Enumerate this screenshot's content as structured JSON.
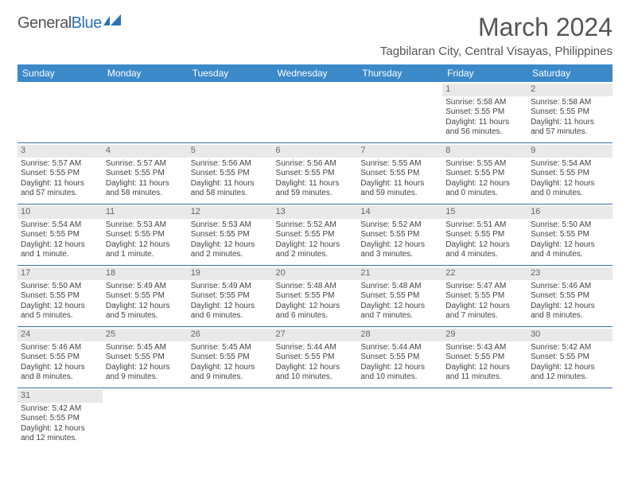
{
  "logo": {
    "text_general": "General",
    "text_blue": "Blue"
  },
  "title": "March 2024",
  "location": "Tagbilaran City, Central Visayas, Philippines",
  "day_headers": [
    "Sunday",
    "Monday",
    "Tuesday",
    "Wednesday",
    "Thursday",
    "Friday",
    "Saturday"
  ],
  "colors": {
    "header_bg": "#3b89c9",
    "header_text": "#ffffff",
    "daynum_bg": "#e9e9e9",
    "border": "#3b6ea5",
    "text": "#444444"
  },
  "weeks": [
    [
      null,
      null,
      null,
      null,
      null,
      {
        "n": "1",
        "sr": "Sunrise: 5:58 AM",
        "ss": "Sunset: 5:55 PM",
        "dl1": "Daylight: 11 hours",
        "dl2": "and 56 minutes."
      },
      {
        "n": "2",
        "sr": "Sunrise: 5:58 AM",
        "ss": "Sunset: 5:55 PM",
        "dl1": "Daylight: 11 hours",
        "dl2": "and 57 minutes."
      }
    ],
    [
      {
        "n": "3",
        "sr": "Sunrise: 5:57 AM",
        "ss": "Sunset: 5:55 PM",
        "dl1": "Daylight: 11 hours",
        "dl2": "and 57 minutes."
      },
      {
        "n": "4",
        "sr": "Sunrise: 5:57 AM",
        "ss": "Sunset: 5:55 PM",
        "dl1": "Daylight: 11 hours",
        "dl2": "and 58 minutes."
      },
      {
        "n": "5",
        "sr": "Sunrise: 5:56 AM",
        "ss": "Sunset: 5:55 PM",
        "dl1": "Daylight: 11 hours",
        "dl2": "and 58 minutes."
      },
      {
        "n": "6",
        "sr": "Sunrise: 5:56 AM",
        "ss": "Sunset: 5:55 PM",
        "dl1": "Daylight: 11 hours",
        "dl2": "and 59 minutes."
      },
      {
        "n": "7",
        "sr": "Sunrise: 5:55 AM",
        "ss": "Sunset: 5:55 PM",
        "dl1": "Daylight: 11 hours",
        "dl2": "and 59 minutes."
      },
      {
        "n": "8",
        "sr": "Sunrise: 5:55 AM",
        "ss": "Sunset: 5:55 PM",
        "dl1": "Daylight: 12 hours",
        "dl2": "and 0 minutes."
      },
      {
        "n": "9",
        "sr": "Sunrise: 5:54 AM",
        "ss": "Sunset: 5:55 PM",
        "dl1": "Daylight: 12 hours",
        "dl2": "and 0 minutes."
      }
    ],
    [
      {
        "n": "10",
        "sr": "Sunrise: 5:54 AM",
        "ss": "Sunset: 5:55 PM",
        "dl1": "Daylight: 12 hours",
        "dl2": "and 1 minute."
      },
      {
        "n": "11",
        "sr": "Sunrise: 5:53 AM",
        "ss": "Sunset: 5:55 PM",
        "dl1": "Daylight: 12 hours",
        "dl2": "and 1 minute."
      },
      {
        "n": "12",
        "sr": "Sunrise: 5:53 AM",
        "ss": "Sunset: 5:55 PM",
        "dl1": "Daylight: 12 hours",
        "dl2": "and 2 minutes."
      },
      {
        "n": "13",
        "sr": "Sunrise: 5:52 AM",
        "ss": "Sunset: 5:55 PM",
        "dl1": "Daylight: 12 hours",
        "dl2": "and 2 minutes."
      },
      {
        "n": "14",
        "sr": "Sunrise: 5:52 AM",
        "ss": "Sunset: 5:55 PM",
        "dl1": "Daylight: 12 hours",
        "dl2": "and 3 minutes."
      },
      {
        "n": "15",
        "sr": "Sunrise: 5:51 AM",
        "ss": "Sunset: 5:55 PM",
        "dl1": "Daylight: 12 hours",
        "dl2": "and 4 minutes."
      },
      {
        "n": "16",
        "sr": "Sunrise: 5:50 AM",
        "ss": "Sunset: 5:55 PM",
        "dl1": "Daylight: 12 hours",
        "dl2": "and 4 minutes."
      }
    ],
    [
      {
        "n": "17",
        "sr": "Sunrise: 5:50 AM",
        "ss": "Sunset: 5:55 PM",
        "dl1": "Daylight: 12 hours",
        "dl2": "and 5 minutes."
      },
      {
        "n": "18",
        "sr": "Sunrise: 5:49 AM",
        "ss": "Sunset: 5:55 PM",
        "dl1": "Daylight: 12 hours",
        "dl2": "and 5 minutes."
      },
      {
        "n": "19",
        "sr": "Sunrise: 5:49 AM",
        "ss": "Sunset: 5:55 PM",
        "dl1": "Daylight: 12 hours",
        "dl2": "and 6 minutes."
      },
      {
        "n": "20",
        "sr": "Sunrise: 5:48 AM",
        "ss": "Sunset: 5:55 PM",
        "dl1": "Daylight: 12 hours",
        "dl2": "and 6 minutes."
      },
      {
        "n": "21",
        "sr": "Sunrise: 5:48 AM",
        "ss": "Sunset: 5:55 PM",
        "dl1": "Daylight: 12 hours",
        "dl2": "and 7 minutes."
      },
      {
        "n": "22",
        "sr": "Sunrise: 5:47 AM",
        "ss": "Sunset: 5:55 PM",
        "dl1": "Daylight: 12 hours",
        "dl2": "and 7 minutes."
      },
      {
        "n": "23",
        "sr": "Sunrise: 5:46 AM",
        "ss": "Sunset: 5:55 PM",
        "dl1": "Daylight: 12 hours",
        "dl2": "and 8 minutes."
      }
    ],
    [
      {
        "n": "24",
        "sr": "Sunrise: 5:46 AM",
        "ss": "Sunset: 5:55 PM",
        "dl1": "Daylight: 12 hours",
        "dl2": "and 8 minutes."
      },
      {
        "n": "25",
        "sr": "Sunrise: 5:45 AM",
        "ss": "Sunset: 5:55 PM",
        "dl1": "Daylight: 12 hours",
        "dl2": "and 9 minutes."
      },
      {
        "n": "26",
        "sr": "Sunrise: 5:45 AM",
        "ss": "Sunset: 5:55 PM",
        "dl1": "Daylight: 12 hours",
        "dl2": "and 9 minutes."
      },
      {
        "n": "27",
        "sr": "Sunrise: 5:44 AM",
        "ss": "Sunset: 5:55 PM",
        "dl1": "Daylight: 12 hours",
        "dl2": "and 10 minutes."
      },
      {
        "n": "28",
        "sr": "Sunrise: 5:44 AM",
        "ss": "Sunset: 5:55 PM",
        "dl1": "Daylight: 12 hours",
        "dl2": "and 10 minutes."
      },
      {
        "n": "29",
        "sr": "Sunrise: 5:43 AM",
        "ss": "Sunset: 5:55 PM",
        "dl1": "Daylight: 12 hours",
        "dl2": "and 11 minutes."
      },
      {
        "n": "30",
        "sr": "Sunrise: 5:42 AM",
        "ss": "Sunset: 5:55 PM",
        "dl1": "Daylight: 12 hours",
        "dl2": "and 12 minutes."
      }
    ],
    [
      {
        "n": "31",
        "sr": "Sunrise: 5:42 AM",
        "ss": "Sunset: 5:55 PM",
        "dl1": "Daylight: 12 hours",
        "dl2": "and 12 minutes."
      },
      null,
      null,
      null,
      null,
      null,
      null
    ]
  ]
}
